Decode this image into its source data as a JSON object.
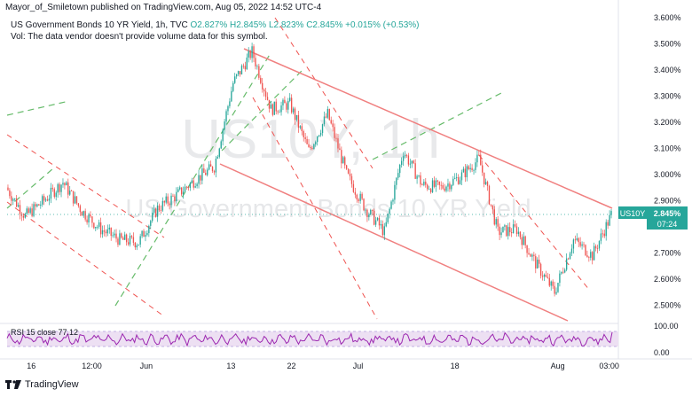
{
  "header": "Mayor_of_Smiletown published on TradingView.com, Aug 05, 2022 14:52 UTC-4",
  "legend": {
    "title": "US Government Bonds 10 YR Yield, 1h, TVC",
    "o": "O2.827%",
    "h": "H2.845%",
    "l": "L2.823%",
    "c": "C2.845%",
    "chg": "+0.015% (+0.53%)",
    "vol_note": "Vol: The data vendor doesn't provide volume data for this symbol."
  },
  "watermark": {
    "symbol": "US10Y, 1h",
    "name": "US Government Bonds 10 YR Yield"
  },
  "price_axis": [
    "3.600%",
    "3.500%",
    "3.400%",
    "3.300%",
    "3.200%",
    "3.100%",
    "3.000%",
    "2.900%",
    "2.700%",
    "2.600%",
    "2.500%"
  ],
  "rsi_axis": [
    "100.00",
    "0.00"
  ],
  "rsi_label": "RSI 15 close 77.12",
  "price_tag": {
    "symbol": "US10Y",
    "value": "2.845%",
    "countdown": "07:24"
  },
  "time_axis": [
    "16",
    "12:00",
    "Jun",
    "13",
    "22",
    "Jul",
    "18",
    "Aug",
    "03:00"
  ],
  "brand": "TradingView",
  "colors": {
    "up": "#26a69a",
    "down": "#ef5350",
    "channel": "#f08080",
    "fib_green": "#66bb6a",
    "rsi": "#9c27b0",
    "rsi_band": "#ede0f3",
    "tag": "#26a69a"
  },
  "chart_data": {
    "type": "candlestick",
    "symbol": "US10Y",
    "timeframe": "1h",
    "y_axis_ticks": [
      3.6,
      3.5,
      3.4,
      3.3,
      3.2,
      3.1,
      3.0,
      2.9,
      2.7,
      2.6,
      2.5
    ],
    "ylim": [
      2.44,
      3.62
    ],
    "last_close": 2.845,
    "approx_close_path": [
      {
        "t": "May 12",
        "v": 2.95
      },
      {
        "t": "May 13",
        "v": 2.84
      },
      {
        "t": "May 16",
        "v": 2.9
      },
      {
        "t": "May 18",
        "v": 2.97
      },
      {
        "t": "May 19",
        "v": 2.86
      },
      {
        "t": "May 20",
        "v": 2.79
      },
      {
        "t": "May 24",
        "v": 2.75
      },
      {
        "t": "May 26",
        "v": 2.74
      },
      {
        "t": "May 31",
        "v": 2.87
      },
      {
        "t": "Jun 2",
        "v": 2.92
      },
      {
        "t": "Jun 7",
        "v": 2.98
      },
      {
        "t": "Jun 9",
        "v": 3.03
      },
      {
        "t": "Jun 13",
        "v": 3.35
      },
      {
        "t": "Jun 14",
        "v": 3.47
      },
      {
        "t": "Jun 16",
        "v": 3.25
      },
      {
        "t": "Jun 21",
        "v": 3.27
      },
      {
        "t": "Jun 23",
        "v": 3.09
      },
      {
        "t": "Jun 27",
        "v": 3.23
      },
      {
        "t": "Jun 30",
        "v": 3.0
      },
      {
        "t": "Jul 1",
        "v": 2.87
      },
      {
        "t": "Jul 5",
        "v": 2.78
      },
      {
        "t": "Jul 8",
        "v": 3.09
      },
      {
        "t": "Jul 12",
        "v": 2.96
      },
      {
        "t": "Jul 14",
        "v": 2.95
      },
      {
        "t": "Jul 18",
        "v": 2.99
      },
      {
        "t": "Jul 21",
        "v": 3.06
      },
      {
        "t": "Jul 22",
        "v": 2.78
      },
      {
        "t": "Jul 26",
        "v": 2.79
      },
      {
        "t": "Jul 28",
        "v": 2.66
      },
      {
        "t": "Aug 1",
        "v": 2.55
      },
      {
        "t": "Aug 2",
        "v": 2.75
      },
      {
        "t": "Aug 4",
        "v": 2.69
      },
      {
        "t": "Aug 5",
        "v": 2.845
      }
    ],
    "rsi": {
      "period": 15,
      "source": "close",
      "last": 77.12,
      "range": [
        0,
        100
      ]
    },
    "grid": false
  }
}
